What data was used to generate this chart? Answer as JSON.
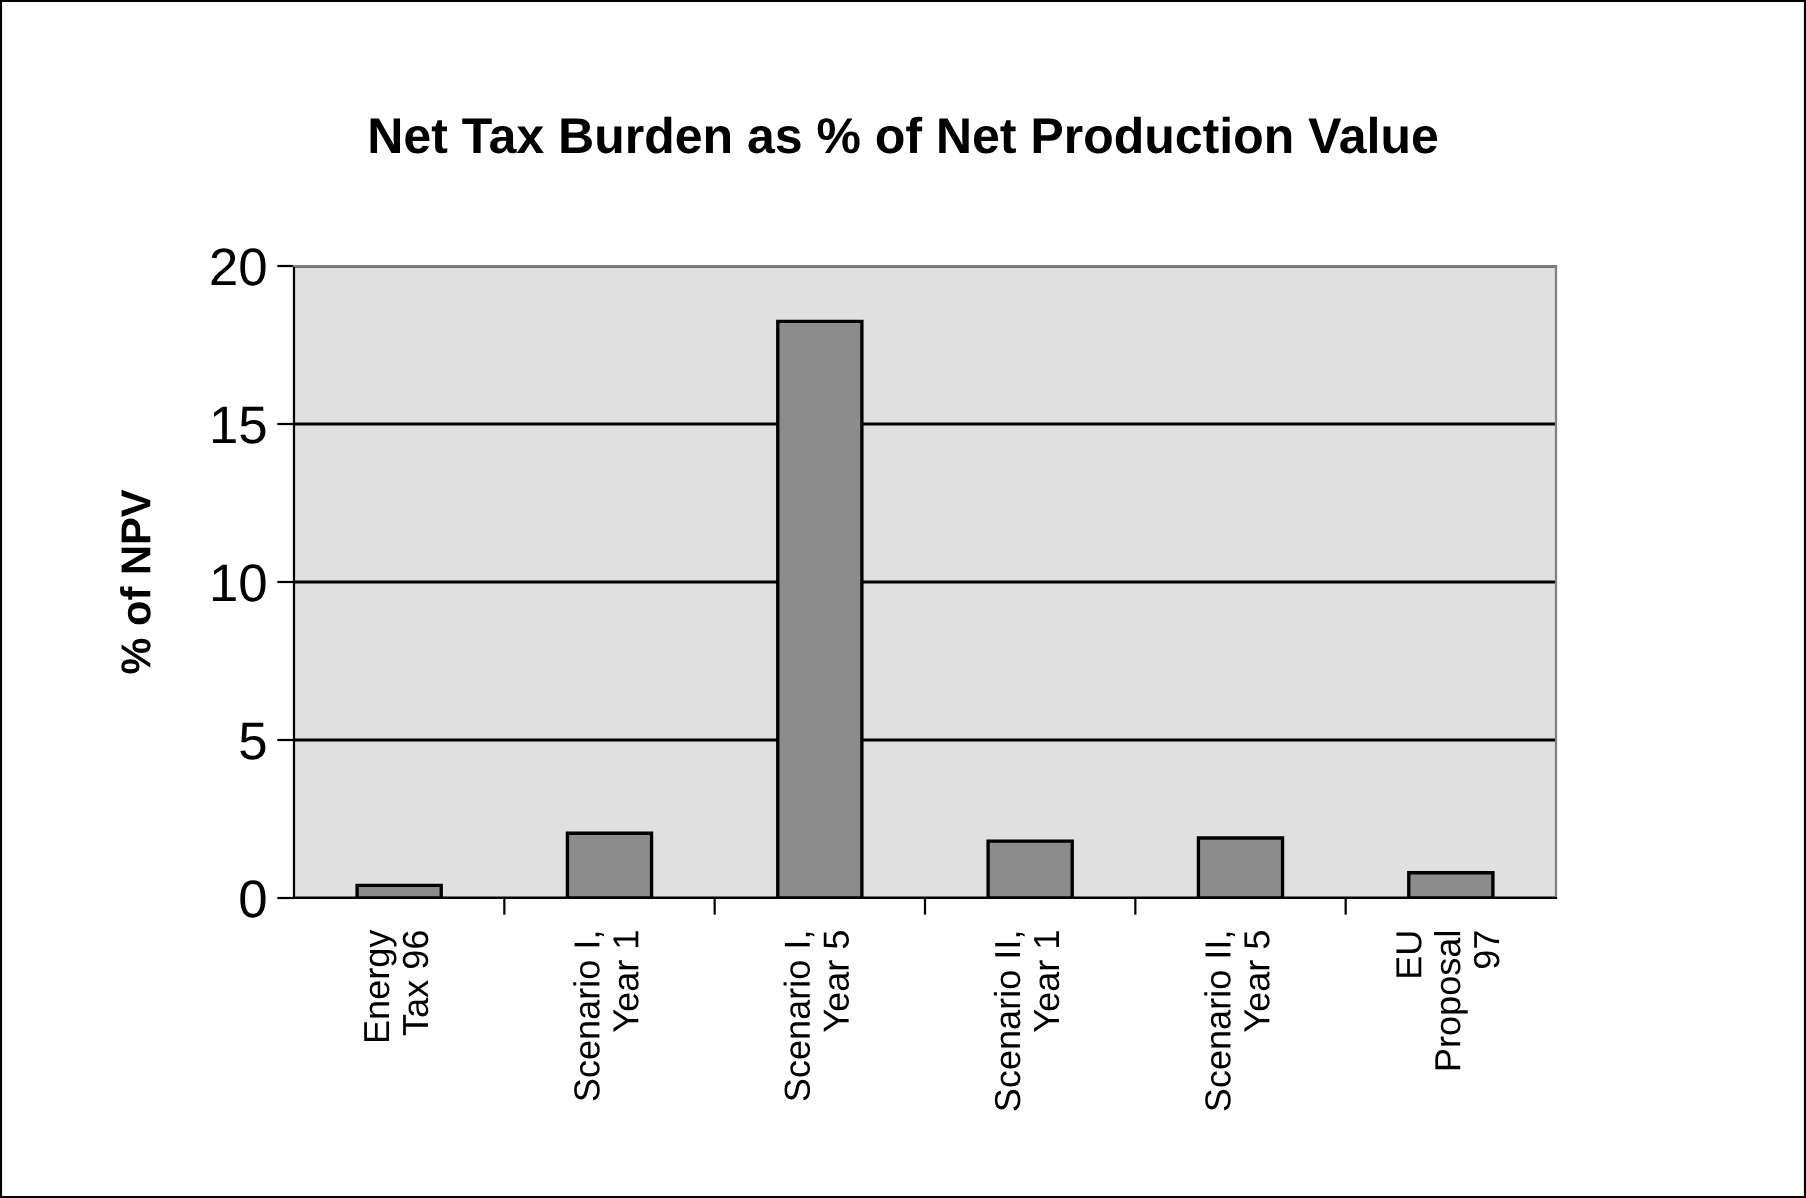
{
  "chart_data": {
    "type": "bar",
    "title": "Net Tax Burden as % of Net Production Value",
    "ylabel": "% of NPV",
    "categories": [
      "Energy\nTax 96",
      "Scenario I,\nYear 1",
      "Scenario I,\nYear 5",
      "Scenario II,\nYear 1",
      "Scenario II,\nYear 5",
      "EU\nProposal\n97"
    ],
    "values": [
      0.4,
      2.05,
      18.25,
      1.8,
      1.9,
      0.8
    ],
    "color": "#8c8c8c",
    "ylim": [
      0,
      20
    ],
    "yticks": [
      0,
      5,
      10,
      15,
      20
    ],
    "grid": "y",
    "legend": false
  }
}
